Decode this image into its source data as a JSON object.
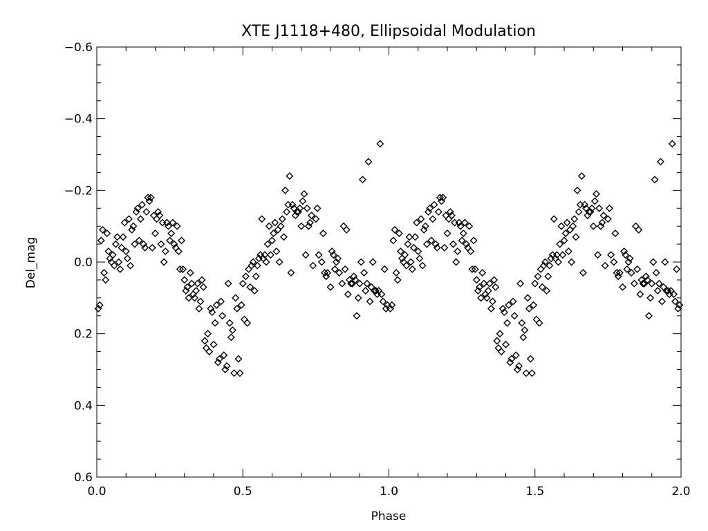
{
  "chart_data": {
    "type": "scatter",
    "title": "XTE J1118+480, Ellipsoidal Modulation",
    "xlabel": "Phase",
    "ylabel": "Del_mag",
    "xlim": [
      0.0,
      2.0
    ],
    "ylim": [
      0.6,
      -0.6
    ],
    "y_axis_inverted": true,
    "x_ticks": [
      "0.0",
      "0.5",
      "1.0",
      "1.5",
      "2.0"
    ],
    "y_ticks": [
      "-0.6",
      "-0.4",
      "-0.2",
      "0.0",
      "0.2",
      "0.4",
      "0.6"
    ],
    "grid": false,
    "marker": "diamond-open",
    "marker_color": "#000000",
    "repeated_period": 1.0,
    "series": [
      {
        "points": [
          [
            0.005,
            0.13
          ],
          [
            0.01,
            0.12
          ],
          [
            0.015,
            -0.06
          ],
          [
            0.02,
            -0.09
          ],
          [
            0.025,
            0.03
          ],
          [
            0.03,
            0.05
          ],
          [
            0.035,
            -0.08
          ],
          [
            0.04,
            -0.03
          ],
          [
            0.045,
            -0.01
          ],
          [
            0.05,
            0.0
          ],
          [
            0.055,
            -0.02
          ],
          [
            0.06,
            0.01
          ],
          [
            0.065,
            -0.05
          ],
          [
            0.07,
            -0.07
          ],
          [
            0.075,
            0.0
          ],
          [
            0.08,
            0.02
          ],
          [
            0.085,
            -0.04
          ],
          [
            0.09,
            -0.07
          ],
          [
            0.095,
            -0.11
          ],
          [
            0.1,
            -0.03
          ],
          [
            0.105,
            -0.01
          ],
          [
            0.11,
            -0.12
          ],
          [
            0.115,
            0.01
          ],
          [
            0.12,
            -0.09
          ],
          [
            0.125,
            -0.1
          ],
          [
            0.13,
            -0.05
          ],
          [
            0.135,
            -0.14
          ],
          [
            0.14,
            -0.15
          ],
          [
            0.145,
            -0.06
          ],
          [
            0.15,
            -0.12
          ],
          [
            0.155,
            -0.16
          ],
          [
            0.16,
            -0.05
          ],
          [
            0.165,
            -0.04
          ],
          [
            0.17,
            -0.14
          ],
          [
            0.175,
            -0.18
          ],
          [
            0.18,
            -0.17
          ],
          [
            0.185,
            -0.18
          ],
          [
            0.19,
            -0.04
          ],
          [
            0.195,
            -0.13
          ],
          [
            0.2,
            -0.08
          ],
          [
            0.205,
            -0.12
          ],
          [
            0.21,
            -0.14
          ],
          [
            0.215,
            -0.13
          ],
          [
            0.22,
            -0.05
          ],
          [
            0.225,
            -0.11
          ],
          [
            0.23,
            0.0
          ],
          [
            0.235,
            -0.03
          ],
          [
            0.24,
            -0.11
          ],
          [
            0.245,
            -0.1
          ],
          [
            0.25,
            -0.06
          ],
          [
            0.255,
            -0.08
          ],
          [
            0.26,
            -0.11
          ],
          [
            0.265,
            -0.05
          ],
          [
            0.27,
            -0.04
          ],
          [
            0.275,
            -0.1
          ],
          [
            0.28,
            -0.03
          ],
          [
            0.285,
            0.02
          ],
          [
            0.29,
            -0.06
          ],
          [
            0.295,
            0.02
          ],
          [
            0.3,
            0.05
          ],
          [
            0.305,
            0.08
          ],
          [
            0.31,
            0.07
          ],
          [
            0.315,
            0.1
          ],
          [
            0.32,
            0.03
          ],
          [
            0.325,
            0.06
          ],
          [
            0.33,
            0.09
          ],
          [
            0.335,
            0.1
          ],
          [
            0.34,
            0.08
          ],
          [
            0.345,
            0.06
          ],
          [
            0.35,
            0.13
          ],
          [
            0.355,
            0.11
          ],
          [
            0.36,
            0.05
          ],
          [
            0.365,
            0.07
          ],
          [
            0.37,
            0.22
          ],
          [
            0.375,
            0.24
          ],
          [
            0.38,
            0.2
          ],
          [
            0.385,
            0.25
          ],
          [
            0.39,
            0.13
          ],
          [
            0.395,
            0.14
          ],
          [
            0.4,
            0.23
          ],
          [
            0.405,
            0.17
          ],
          [
            0.41,
            0.12
          ],
          [
            0.415,
            0.28
          ],
          [
            0.42,
            0.27
          ],
          [
            0.425,
            0.11
          ],
          [
            0.43,
            0.15
          ],
          [
            0.435,
            0.26
          ],
          [
            0.44,
            0.3
          ],
          [
            0.445,
            0.29
          ],
          [
            0.45,
            0.06
          ],
          [
            0.455,
            0.17
          ],
          [
            0.46,
            0.21
          ],
          [
            0.465,
            0.19
          ],
          [
            0.47,
            0.31
          ],
          [
            0.475,
            0.1
          ],
          [
            0.48,
            0.13
          ],
          [
            0.485,
            0.27
          ],
          [
            0.49,
            0.31
          ],
          [
            0.495,
            0.12
          ],
          [
            0.5,
            0.06
          ],
          [
            0.505,
            0.16
          ],
          [
            0.51,
            0.04
          ],
          [
            0.515,
            0.17
          ],
          [
            0.52,
            0.02
          ],
          [
            0.525,
            0.07
          ],
          [
            0.53,
            0.01
          ],
          [
            0.535,
            0.0
          ],
          [
            0.54,
            0.08
          ],
          [
            0.545,
            0.04
          ],
          [
            0.55,
            0.01
          ],
          [
            0.555,
            -0.01
          ],
          [
            0.56,
            -0.02
          ],
          [
            0.565,
            -0.12
          ],
          [
            0.57,
            -0.01
          ],
          [
            0.575,
            -0.02
          ],
          [
            0.58,
            0.0
          ],
          [
            0.585,
            -0.05
          ],
          [
            0.59,
            -0.1
          ],
          [
            0.595,
            -0.02
          ],
          [
            0.6,
            -0.06
          ],
          [
            0.605,
            -0.08
          ],
          [
            0.61,
            -0.11
          ],
          [
            0.615,
            -0.03
          ],
          [
            0.62,
            -0.09
          ],
          [
            0.625,
            0.0
          ],
          [
            0.63,
            -0.1
          ],
          [
            0.635,
            -0.12
          ],
          [
            0.64,
            -0.07
          ],
          [
            0.645,
            -0.2
          ],
          [
            0.65,
            -0.14
          ],
          [
            0.655,
            -0.16
          ],
          [
            0.66,
            -0.24
          ],
          [
            0.665,
            0.03
          ],
          [
            0.67,
            -0.16
          ],
          [
            0.675,
            -0.15
          ],
          [
            0.68,
            -0.13
          ],
          [
            0.685,
            -0.14
          ],
          [
            0.69,
            -0.14
          ],
          [
            0.695,
            -0.15
          ],
          [
            0.7,
            -0.1
          ],
          [
            0.705,
            -0.17
          ],
          [
            0.71,
            -0.19
          ],
          [
            0.715,
            -0.02
          ],
          [
            0.72,
            -0.15
          ],
          [
            0.725,
            -0.1
          ],
          [
            0.73,
            -0.11
          ],
          [
            0.735,
            -0.13
          ],
          [
            0.74,
            0.01
          ],
          [
            0.75,
            -0.12
          ],
          [
            0.755,
            -0.15
          ],
          [
            0.76,
            -0.02
          ],
          [
            0.77,
            0.0
          ],
          [
            0.775,
            -0.08
          ],
          [
            0.78,
            0.03
          ],
          [
            0.785,
            0.04
          ],
          [
            0.79,
            0.03
          ],
          [
            0.8,
            0.07
          ],
          [
            0.805,
            -0.03
          ],
          [
            0.81,
            -0.02
          ],
          [
            0.815,
            0.02
          ],
          [
            0.82,
            0.0
          ],
          [
            0.825,
            -0.01
          ],
          [
            0.83,
            0.03
          ],
          [
            0.84,
            0.06
          ],
          [
            0.845,
            -0.1
          ],
          [
            0.85,
            0.02
          ],
          [
            0.855,
            -0.09
          ],
          [
            0.86,
            0.09
          ],
          [
            0.865,
            0.05
          ],
          [
            0.87,
            0.06
          ],
          [
            0.875,
            0.06
          ],
          [
            0.88,
            0.04
          ],
          [
            0.885,
            0.05
          ],
          [
            0.89,
            0.15
          ],
          [
            0.895,
            0.1
          ],
          [
            0.9,
            0.06
          ],
          [
            0.905,
            0.0
          ],
          [
            0.91,
            -0.23
          ],
          [
            0.915,
            0.03
          ],
          [
            0.92,
            0.08
          ],
          [
            0.925,
            0.06
          ],
          [
            0.93,
            -0.28
          ],
          [
            0.935,
            0.11
          ],
          [
            0.94,
            0.07
          ],
          [
            0.945,
            0.0
          ],
          [
            0.95,
            0.08
          ],
          [
            0.955,
            0.08
          ],
          [
            0.96,
            0.09
          ],
          [
            0.965,
            0.08
          ],
          [
            0.97,
            -0.33
          ],
          [
            0.975,
            0.09
          ],
          [
            0.98,
            0.11
          ],
          [
            0.985,
            0.02
          ],
          [
            0.99,
            0.13
          ],
          [
            0.995,
            0.12
          ]
        ]
      }
    ]
  }
}
